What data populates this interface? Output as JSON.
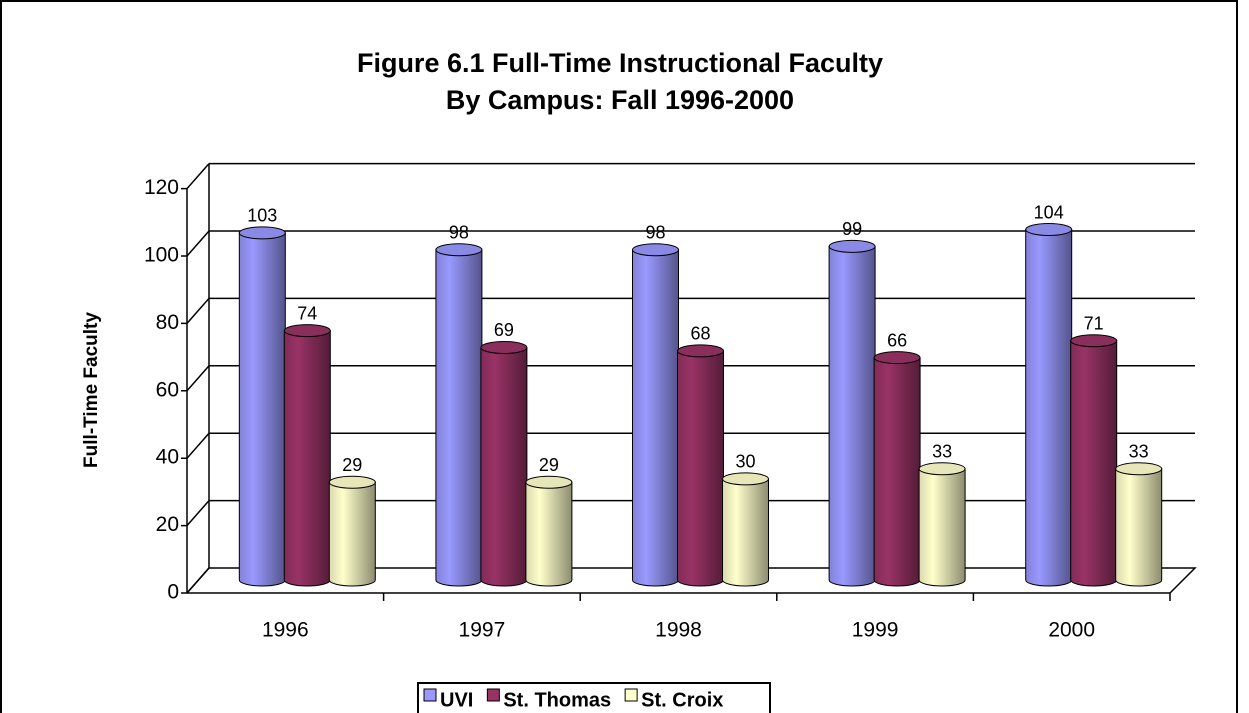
{
  "chart_data": {
    "type": "bar3d",
    "title": [
      "Figure 6.1 Full-Time Instructional Faculty",
      "By Campus:  Fall 1996-2000"
    ],
    "y_label": "Full-Time Faculty",
    "categories": [
      "1996",
      "1997",
      "1998",
      "1999",
      "2000"
    ],
    "series": [
      {
        "name": "UVI",
        "color": "#9999ff",
        "values": [
          103,
          98,
          98,
          99,
          104
        ]
      },
      {
        "name": "St. Thomas",
        "color": "#993366",
        "values": [
          74,
          69,
          68,
          66,
          71
        ]
      },
      {
        "name": "St. Croix",
        "color": "#ffffcc",
        "values": [
          29,
          29,
          30,
          33,
          33
        ]
      }
    ],
    "ylim": [
      0,
      120
    ],
    "yticks": [
      0,
      20,
      40,
      60,
      80,
      100,
      120
    ],
    "grid": true,
    "legend": "bottom"
  }
}
